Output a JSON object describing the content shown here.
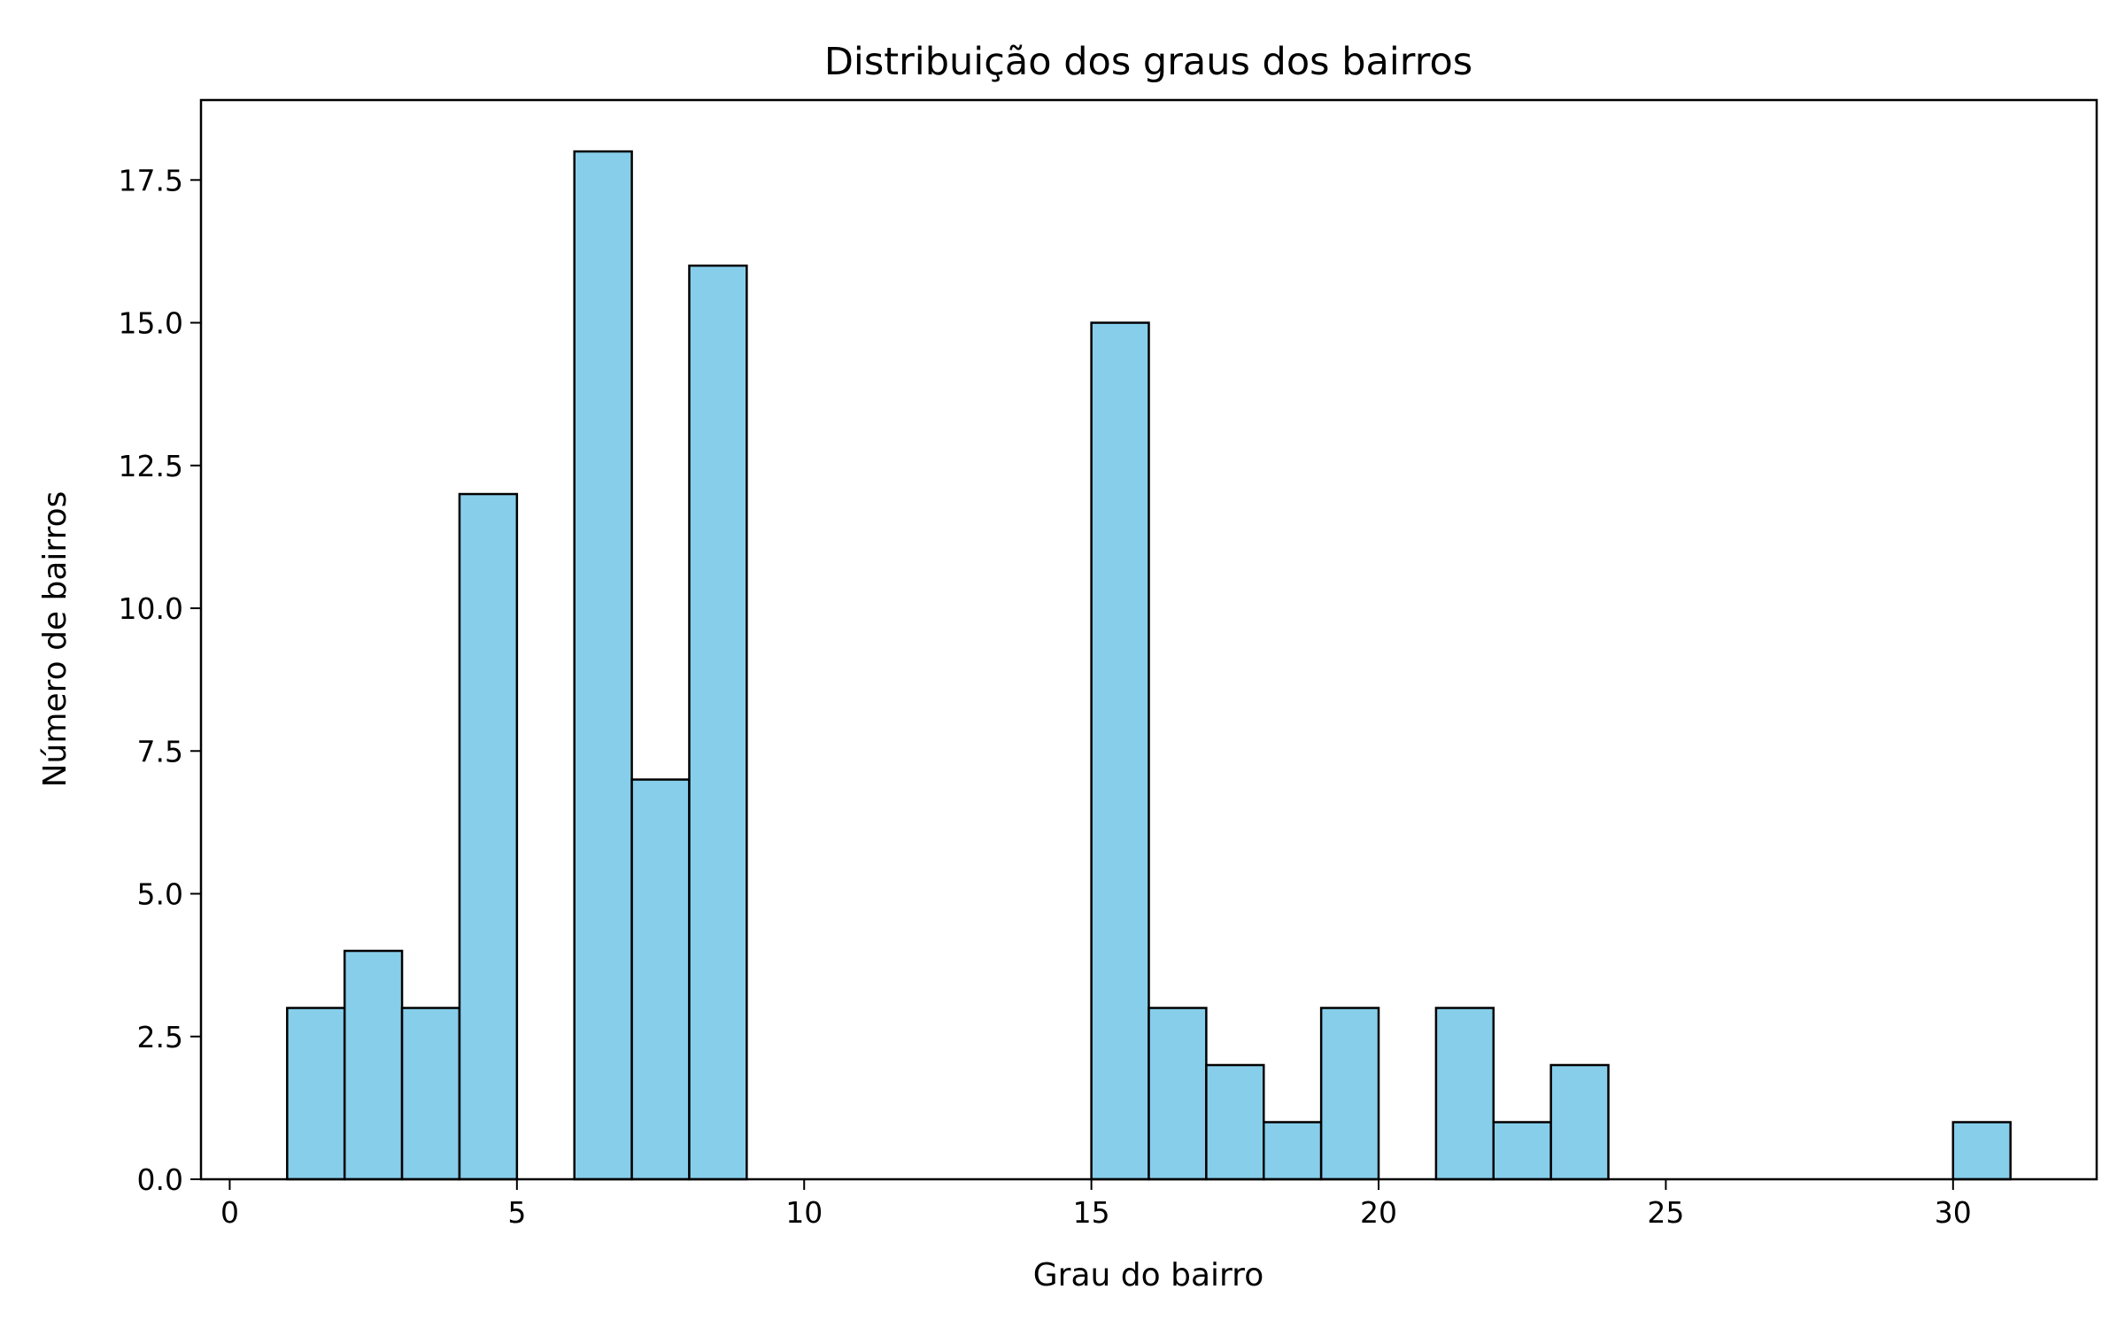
{
  "chart_data": {
    "type": "bar",
    "title": "Distribuição dos graus dos bairros",
    "xlabel": "Grau do bairro",
    "ylabel": "Número de bairros",
    "xlim": [
      -0.5,
      32.5
    ],
    "ylim": [
      0,
      18.9
    ],
    "x_ticks": [
      0,
      5,
      10,
      15,
      20,
      25,
      30
    ],
    "x_tick_labels": [
      "0",
      "5",
      "10",
      "15",
      "20",
      "25",
      "30"
    ],
    "y_ticks": [
      0,
      2.5,
      5,
      7.5,
      10,
      12.5,
      15,
      17.5
    ],
    "y_tick_labels": [
      "0.0",
      "2.5",
      "5.0",
      "7.5",
      "10.0",
      "12.5",
      "15.0",
      "17.5"
    ],
    "bin_edges": [
      1,
      2,
      3,
      4,
      5,
      6,
      7,
      8,
      9,
      10,
      11,
      12,
      13,
      14,
      15,
      16,
      17,
      18,
      19,
      20,
      21,
      22,
      23,
      24,
      25,
      26,
      27,
      28,
      29,
      30,
      31
    ],
    "values": [
      3,
      4,
      3,
      12,
      0,
      18,
      7,
      16,
      0,
      0,
      0,
      0,
      0,
      0,
      15,
      3,
      2,
      1,
      3,
      0,
      3,
      1,
      2,
      0,
      0,
      0,
      0,
      0,
      0,
      1
    ],
    "bar_color": "#87ceeb",
    "edge_color": "#000000",
    "grid": false,
    "legend": "none"
  }
}
